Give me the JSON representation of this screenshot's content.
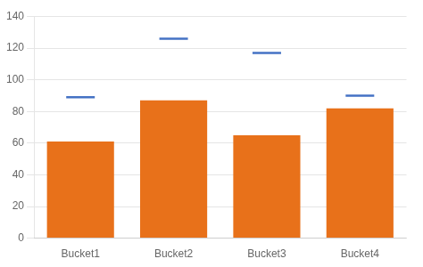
{
  "chart_data": {
    "type": "bar",
    "categories": [
      "Bucket1",
      "Bucket2",
      "Bucket3",
      "Bucket4"
    ],
    "series": [
      {
        "type": "bar",
        "color": "#E8711A",
        "values": [
          61,
          87,
          65,
          82
        ]
      },
      {
        "type": "line",
        "marker": "line",
        "line_style": "none",
        "color": "#4472C4",
        "values": [
          89,
          126,
          117,
          90
        ]
      }
    ],
    "ylim": [
      0,
      140
    ],
    "yticks": [
      0,
      20,
      40,
      60,
      80,
      100,
      120,
      140
    ],
    "grid": true
  }
}
